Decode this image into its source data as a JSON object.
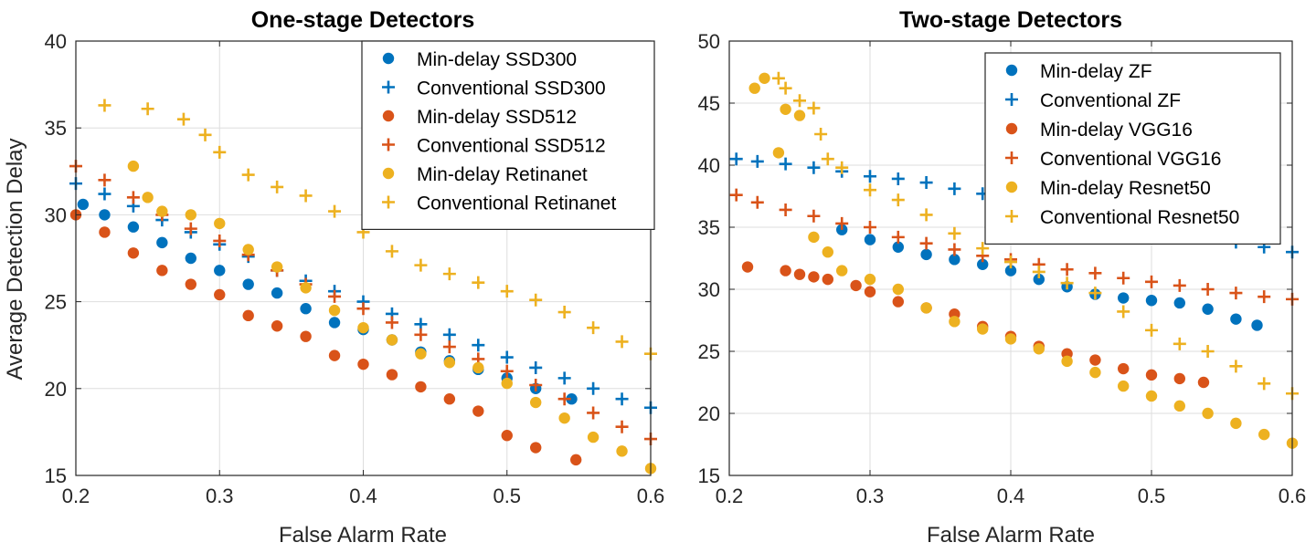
{
  "chart_data": [
    {
      "type": "scatter",
      "title": "One-stage Detectors",
      "xlabel": "False Alarm Rate",
      "ylabel": "Average Detection Delay",
      "xlim": [
        0.2,
        0.6
      ],
      "ylim": [
        15,
        40
      ],
      "xticks": [
        0.2,
        0.3,
        0.4,
        0.5,
        0.6
      ],
      "xtick_labels": [
        "0.2",
        "0.3",
        "0.4",
        "0.5",
        "0.6"
      ],
      "yticks": [
        15,
        20,
        25,
        30,
        35,
        40
      ],
      "ytick_labels": [
        "15",
        "20",
        "25",
        "30",
        "35",
        "40"
      ],
      "grid": true,
      "legend_position": "top-right",
      "series": [
        {
          "name": "Min-delay SSD300",
          "marker": "dot",
          "color": "#0072BD",
          "x": [
            0.205,
            0.22,
            0.24,
            0.26,
            0.28,
            0.3,
            0.32,
            0.34,
            0.36,
            0.38,
            0.4,
            0.42,
            0.44,
            0.46,
            0.48,
            0.5,
            0.52,
            0.545
          ],
          "y": [
            30.6,
            30.0,
            29.3,
            28.4,
            27.5,
            26.8,
            26.0,
            25.5,
            24.6,
            23.8,
            23.4,
            22.8,
            22.1,
            21.6,
            21.1,
            20.6,
            20.0,
            19.4
          ]
        },
        {
          "name": "Conventional SSD300",
          "marker": "plus",
          "color": "#0072BD",
          "x": [
            0.2,
            0.22,
            0.24,
            0.26,
            0.28,
            0.3,
            0.32,
            0.34,
            0.36,
            0.38,
            0.4,
            0.42,
            0.44,
            0.46,
            0.48,
            0.5,
            0.52,
            0.54,
            0.56,
            0.58,
            0.6
          ],
          "y": [
            31.8,
            31.2,
            30.5,
            29.7,
            29.0,
            28.3,
            27.6,
            26.8,
            26.2,
            25.6,
            25.0,
            24.3,
            23.7,
            23.1,
            22.5,
            21.8,
            21.2,
            20.6,
            20.0,
            19.4,
            18.9
          ]
        },
        {
          "name": "Min-delay SSD512",
          "marker": "dot",
          "color": "#D95319",
          "x": [
            0.2,
            0.22,
            0.24,
            0.26,
            0.28,
            0.3,
            0.32,
            0.34,
            0.36,
            0.38,
            0.4,
            0.42,
            0.44,
            0.46,
            0.48,
            0.5,
            0.52,
            0.548
          ],
          "y": [
            30.0,
            29.0,
            27.8,
            26.8,
            26.0,
            25.4,
            24.2,
            23.6,
            23.0,
            21.9,
            21.4,
            20.8,
            20.1,
            19.4,
            18.7,
            17.3,
            16.6,
            15.9
          ]
        },
        {
          "name": "Conventional SSD512",
          "marker": "plus",
          "color": "#D95319",
          "x": [
            0.2,
            0.22,
            0.24,
            0.26,
            0.28,
            0.3,
            0.32,
            0.34,
            0.36,
            0.38,
            0.4,
            0.42,
            0.44,
            0.46,
            0.48,
            0.5,
            0.52,
            0.54,
            0.56,
            0.58,
            0.6
          ],
          "y": [
            32.8,
            32.0,
            31.0,
            30.0,
            29.2,
            28.5,
            27.7,
            26.8,
            26.0,
            25.3,
            24.6,
            23.8,
            23.1,
            22.4,
            21.7,
            21.0,
            20.2,
            19.4,
            18.6,
            17.8,
            17.1
          ]
        },
        {
          "name": "Min-delay Retinanet",
          "marker": "dot",
          "color": "#EDB120",
          "x": [
            0.24,
            0.25,
            0.26,
            0.28,
            0.3,
            0.32,
            0.34,
            0.36,
            0.38,
            0.4,
            0.42,
            0.44,
            0.46,
            0.48,
            0.5,
            0.52,
            0.54,
            0.56,
            0.58,
            0.6
          ],
          "y": [
            32.8,
            31.0,
            30.2,
            30.0,
            29.5,
            28.0,
            27.0,
            25.8,
            24.5,
            23.5,
            22.8,
            22.0,
            21.5,
            21.2,
            20.3,
            19.2,
            18.3,
            17.2,
            16.4,
            15.4
          ]
        },
        {
          "name": "Conventional Retinanet",
          "marker": "plus",
          "color": "#EDB120",
          "x": [
            0.22,
            0.25,
            0.275,
            0.29,
            0.3,
            0.32,
            0.34,
            0.36,
            0.38,
            0.4,
            0.42,
            0.44,
            0.46,
            0.48,
            0.5,
            0.52,
            0.54,
            0.56,
            0.58,
            0.6
          ],
          "y": [
            36.3,
            36.1,
            35.5,
            34.6,
            33.6,
            32.3,
            31.6,
            31.1,
            30.2,
            29.0,
            27.9,
            27.1,
            26.6,
            26.1,
            25.6,
            25.1,
            24.4,
            23.5,
            22.7,
            22.0
          ]
        }
      ]
    },
    {
      "type": "scatter",
      "title": "Two-stage Detectors",
      "xlabel": "False Alarm Rate",
      "ylabel": "",
      "xlim": [
        0.2,
        0.6
      ],
      "ylim": [
        15,
        50
      ],
      "xticks": [
        0.2,
        0.3,
        0.4,
        0.5,
        0.6
      ],
      "xtick_labels": [
        "0.2",
        "0.3",
        "0.4",
        "0.5",
        "0.6"
      ],
      "yticks": [
        15,
        20,
        25,
        30,
        35,
        40,
        45,
        50
      ],
      "ytick_labels": [
        "15",
        "20",
        "25",
        "30",
        "35",
        "40",
        "45",
        "50"
      ],
      "grid": true,
      "legend_position": "top-right",
      "series": [
        {
          "name": "Min-delay ZF",
          "marker": "dot",
          "color": "#0072BD",
          "x": [
            0.28,
            0.3,
            0.32,
            0.34,
            0.36,
            0.38,
            0.4,
            0.42,
            0.44,
            0.46,
            0.48,
            0.5,
            0.52,
            0.54,
            0.56,
            0.575
          ],
          "y": [
            34.8,
            34.0,
            33.4,
            32.8,
            32.4,
            32.0,
            31.5,
            30.8,
            30.2,
            29.6,
            29.3,
            29.1,
            28.9,
            28.4,
            27.6,
            27.1
          ]
        },
        {
          "name": "Conventional ZF",
          "marker": "plus",
          "color": "#0072BD",
          "x": [
            0.205,
            0.22,
            0.24,
            0.26,
            0.28,
            0.3,
            0.32,
            0.34,
            0.36,
            0.38,
            0.4,
            0.42,
            0.44,
            0.46,
            0.48,
            0.5,
            0.52,
            0.54,
            0.56,
            0.58,
            0.6
          ],
          "y": [
            40.5,
            40.3,
            40.1,
            39.8,
            39.5,
            39.1,
            38.9,
            38.6,
            38.1,
            37.7,
            37.4,
            37.0,
            36.6,
            36.2,
            35.8,
            35.3,
            34.8,
            34.3,
            33.8,
            33.4,
            33.0
          ]
        },
        {
          "name": "Min-delay VGG16",
          "marker": "dot",
          "color": "#D95319",
          "x": [
            0.213,
            0.24,
            0.25,
            0.26,
            0.27,
            0.29,
            0.3,
            0.32,
            0.34,
            0.36,
            0.38,
            0.4,
            0.42,
            0.44,
            0.46,
            0.48,
            0.5,
            0.52,
            0.537
          ],
          "y": [
            31.8,
            31.5,
            31.2,
            31.0,
            30.8,
            30.3,
            29.8,
            29.0,
            28.5,
            28.0,
            27.0,
            26.2,
            25.4,
            24.8,
            24.3,
            23.6,
            23.1,
            22.8,
            22.5
          ]
        },
        {
          "name": "Conventional VGG16",
          "marker": "plus",
          "color": "#D95319",
          "x": [
            0.205,
            0.22,
            0.24,
            0.26,
            0.28,
            0.3,
            0.32,
            0.34,
            0.36,
            0.38,
            0.4,
            0.42,
            0.44,
            0.46,
            0.48,
            0.5,
            0.52,
            0.54,
            0.56,
            0.58,
            0.6
          ],
          "y": [
            37.6,
            37.0,
            36.4,
            35.9,
            35.3,
            35.0,
            34.2,
            33.7,
            33.2,
            32.7,
            32.4,
            32.0,
            31.6,
            31.3,
            30.9,
            30.6,
            30.3,
            30.0,
            29.7,
            29.4,
            29.2
          ]
        },
        {
          "name": "Min-delay Resnet50",
          "marker": "dot",
          "color": "#EDB120",
          "x": [
            0.218,
            0.225,
            0.235,
            0.24,
            0.25,
            0.26,
            0.27,
            0.28,
            0.3,
            0.32,
            0.34,
            0.36,
            0.38,
            0.4,
            0.42,
            0.44,
            0.46,
            0.48,
            0.5,
            0.52,
            0.54,
            0.56,
            0.58,
            0.6
          ],
          "y": [
            46.2,
            47.0,
            41.0,
            44.5,
            44.0,
            34.2,
            33.0,
            31.5,
            30.8,
            30.0,
            28.5,
            27.4,
            26.8,
            26.0,
            25.2,
            24.2,
            23.3,
            22.2,
            21.4,
            20.6,
            20.0,
            19.2,
            18.3,
            17.6
          ]
        },
        {
          "name": "Conventional Resnet50",
          "marker": "plus",
          "color": "#EDB120",
          "x": [
            0.235,
            0.24,
            0.25,
            0.26,
            0.265,
            0.27,
            0.28,
            0.3,
            0.32,
            0.34,
            0.36,
            0.38,
            0.4,
            0.42,
            0.44,
            0.46,
            0.48,
            0.5,
            0.52,
            0.54,
            0.56,
            0.58,
            0.6
          ],
          "y": [
            47.0,
            46.2,
            45.2,
            44.6,
            42.5,
            40.5,
            39.8,
            38.0,
            37.2,
            36.0,
            34.5,
            33.3,
            32.2,
            31.4,
            30.5,
            29.7,
            28.2,
            26.7,
            25.6,
            25.0,
            23.8,
            22.4,
            21.6
          ]
        }
      ]
    }
  ]
}
